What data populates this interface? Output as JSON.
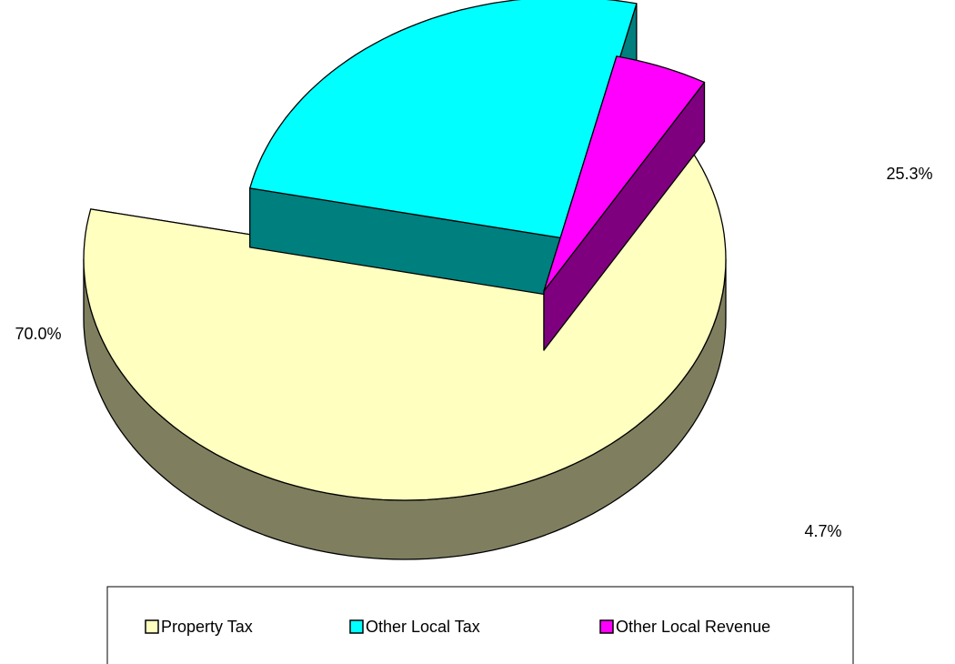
{
  "chart_data": {
    "type": "pie",
    "categories": [
      "Property Tax",
      "Other Local Tax",
      "Other Local Revenue"
    ],
    "values": [
      70.0,
      25.3,
      4.7
    ],
    "value_labels": [
      "70.0%",
      "25.3%",
      "4.7%"
    ],
    "colors": [
      "#ffffc0",
      "#00ffff",
      "#ff00ff"
    ],
    "legend": "bottom"
  }
}
